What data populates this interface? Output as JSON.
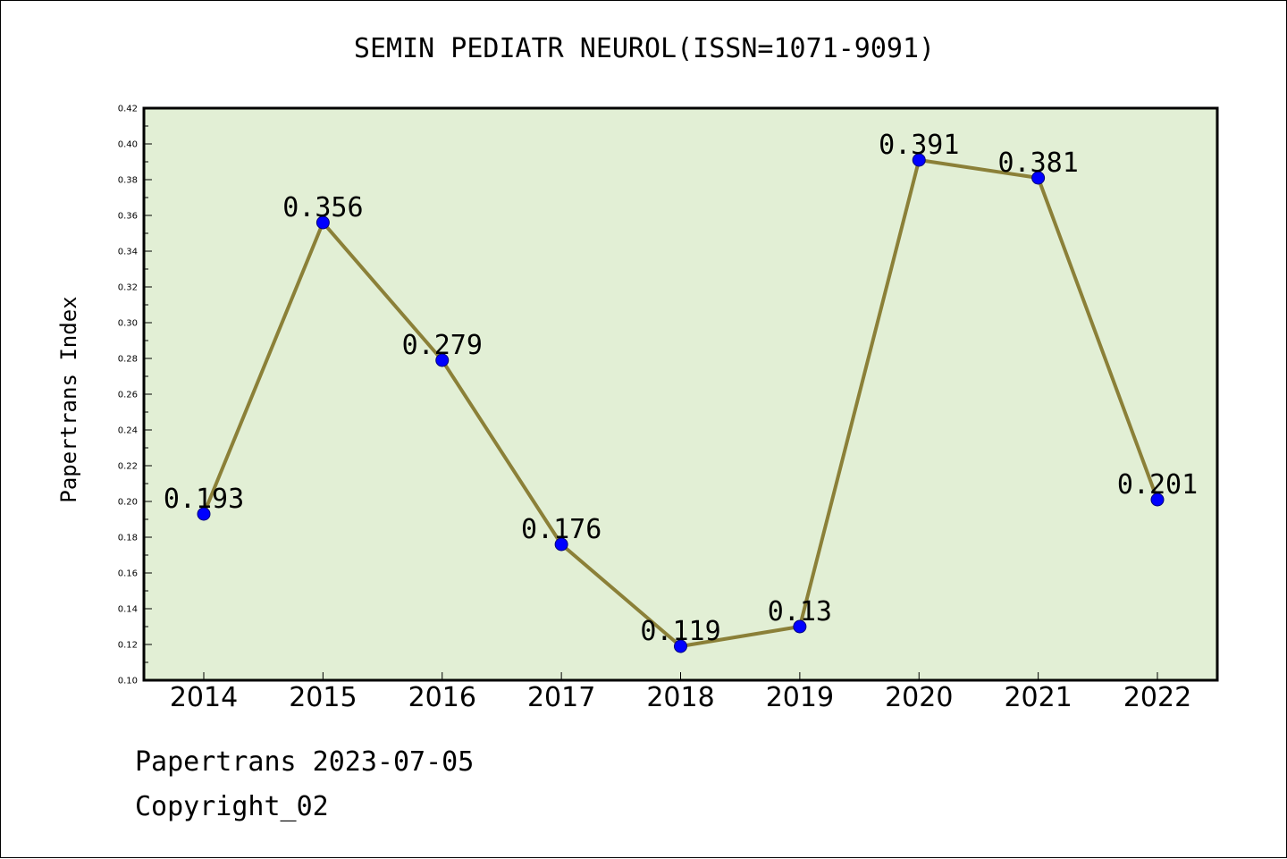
{
  "chart_data": {
    "type": "line",
    "title": "SEMIN PEDIATR NEUROL(ISSN=1071-9091)",
    "xlabel": "",
    "ylabel": "Papertrans Index",
    "categories": [
      "2014",
      "2015",
      "2016",
      "2017",
      "2018",
      "2019",
      "2020",
      "2021",
      "2022"
    ],
    "values": [
      0.193,
      0.356,
      0.279,
      0.176,
      0.119,
      0.13,
      0.391,
      0.381,
      0.201
    ],
    "data_labels": [
      "0.193",
      "0.356",
      "0.279",
      "0.176",
      "0.119",
      "0.13",
      "0.391",
      "0.381",
      "0.201"
    ],
    "ylim": [
      0.1,
      0.42
    ],
    "yticks": [
      "0.10",
      "0.12",
      "0.14",
      "0.16",
      "0.18",
      "0.20",
      "0.22",
      "0.24",
      "0.26",
      "0.28",
      "0.30",
      "0.32",
      "0.34",
      "0.36",
      "0.38",
      "0.40",
      "0.42"
    ],
    "grid": false,
    "colors": {
      "plot_background": "#e2efd5",
      "line": "#8b8038",
      "marker": "#0000ff"
    }
  },
  "footer": {
    "date_line": "Papertrans 2023-07-05",
    "copyright": "Copyright_02"
  }
}
